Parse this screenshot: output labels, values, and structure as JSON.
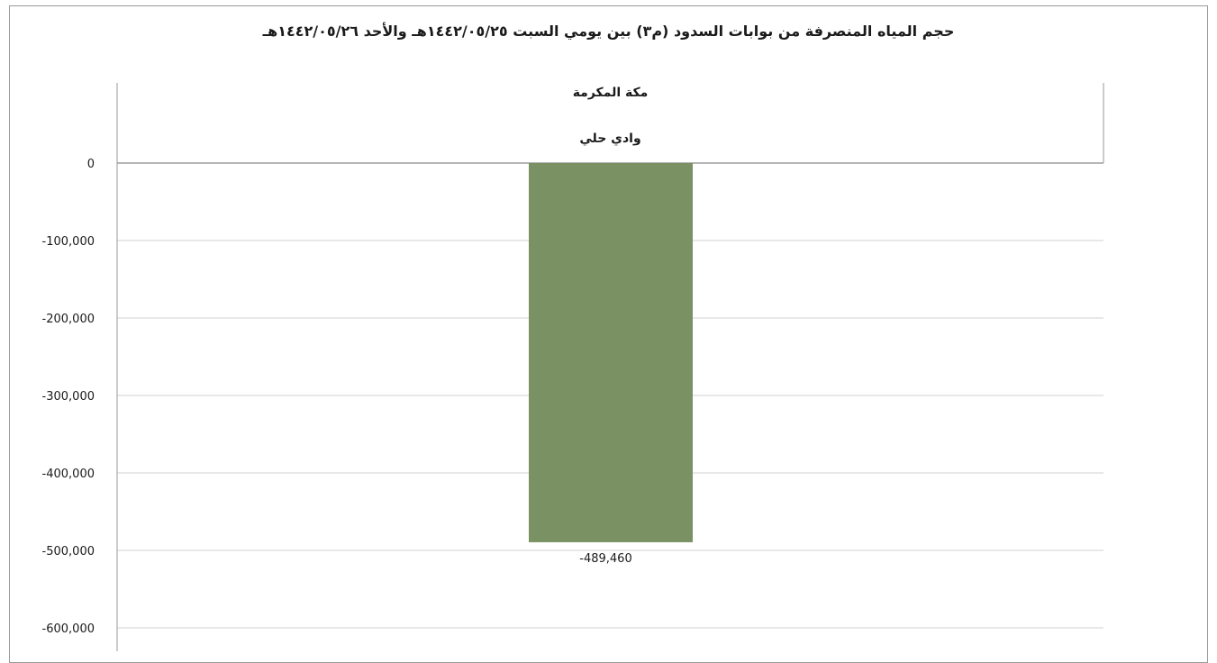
{
  "chart_data": {
    "type": "bar",
    "title": "حجم المياه المنصرفة من بوابات السدود (م٣) بين يومي السبت ١٤٤٢/٠٥/٢٥هـ والأحد ١٤٤٢/٠٥/٢٦هـ",
    "category_group": "مكة المكرمة",
    "categories": [
      "وادي حلي"
    ],
    "values": [
      -489460
    ],
    "data_labels": [
      "-489,460"
    ],
    "ylim": [
      -600000,
      0
    ],
    "yticks": [
      0,
      -100000,
      -200000,
      -300000,
      -400000,
      -500000,
      -600000
    ],
    "ytick_labels": [
      "0",
      "-100,000",
      "-200,000",
      "-300,000",
      "-400,000",
      "-500,000",
      "-600,000"
    ],
    "xlabel": "",
    "ylabel": "",
    "grid": true,
    "legend": "none",
    "colors": {
      "bar": "#7a9164",
      "grid": "#d0d0d0",
      "axis": "#9a9a9a"
    }
  }
}
